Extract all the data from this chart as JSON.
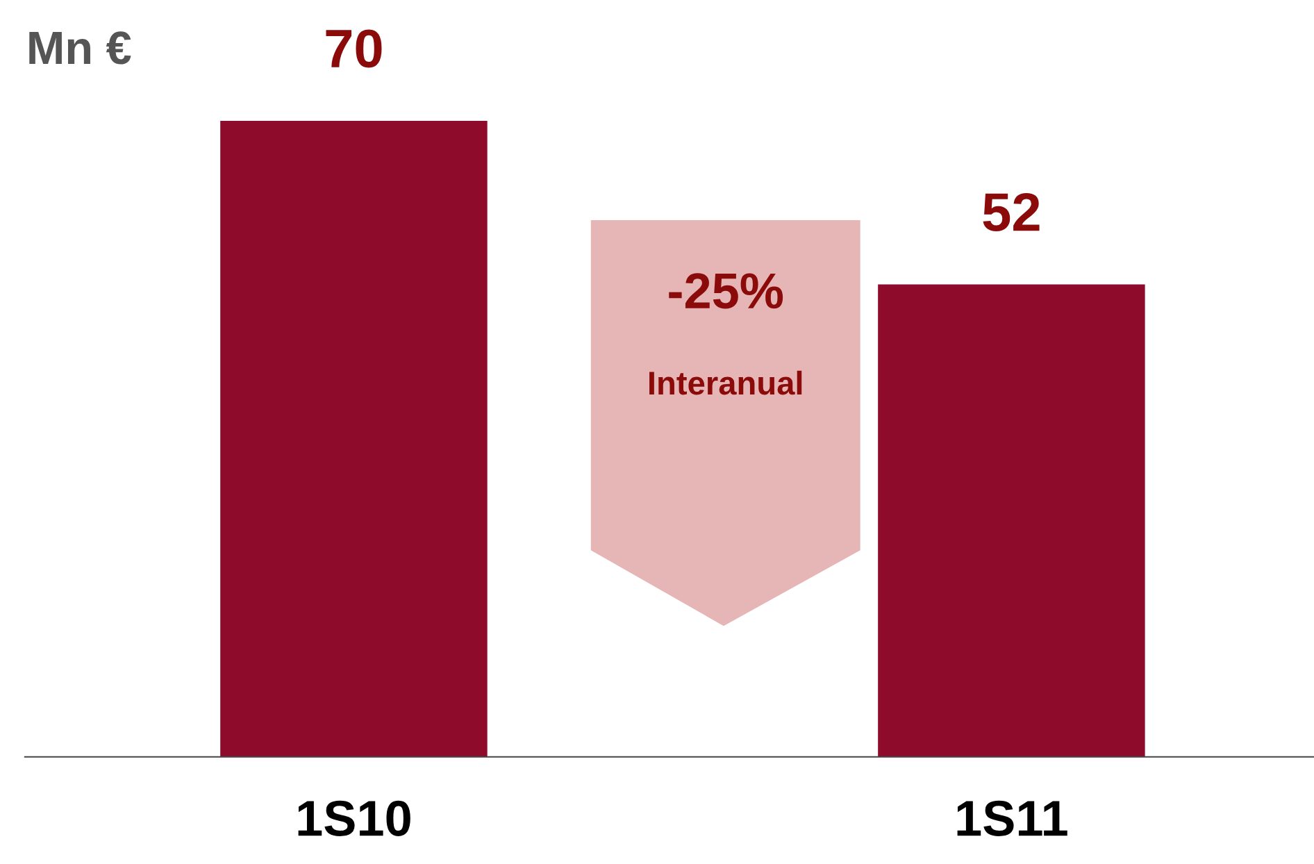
{
  "chart_data": {
    "type": "bar",
    "ylabel": "Mn €",
    "categories": [
      "1S10",
      "1S11"
    ],
    "values": [
      70,
      52
    ],
    "color": "#8f0b2b",
    "tick_labels": "x",
    "data_labels": true,
    "grid": false,
    "annotations": [
      "-25%",
      "Interanual"
    ]
  }
}
